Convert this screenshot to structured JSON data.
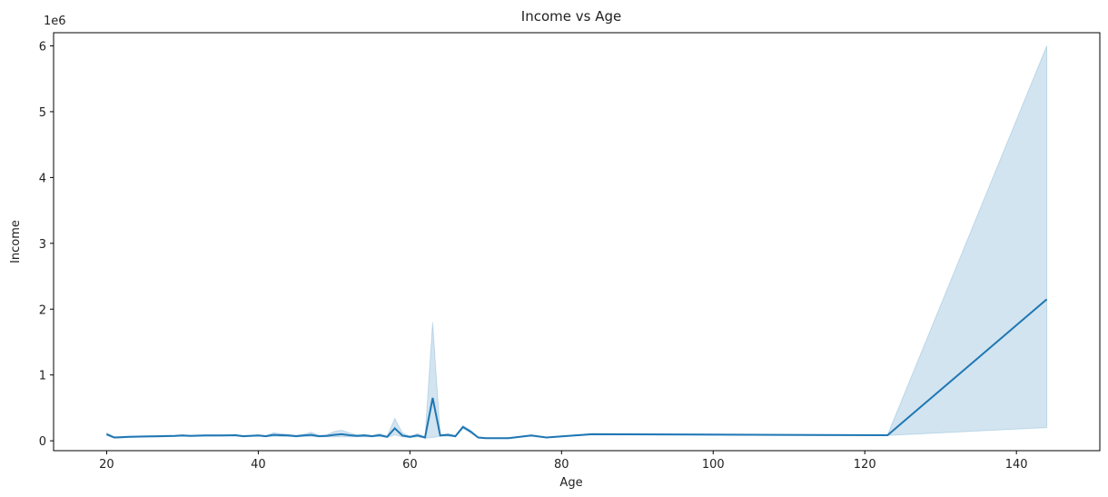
{
  "chart_data": {
    "type": "line",
    "title": "Income vs Age",
    "xlabel": "Age",
    "ylabel": "Income",
    "y_offset_label": "1e6",
    "xlim": [
      13,
      151
    ],
    "ylim": [
      -0.15,
      6.2
    ],
    "y_unit_multiplier": 1000000,
    "xticks": [
      20,
      40,
      60,
      80,
      100,
      120,
      140
    ],
    "yticks": [
      0,
      1,
      2,
      3,
      4,
      5,
      6
    ],
    "grid": false,
    "colors": {
      "line": "#1f77b4",
      "band": "#1f77b4",
      "band_opacity": 0.2
    },
    "series": [
      {
        "name": "",
        "x": [
          20,
          21,
          23,
          25,
          27,
          29,
          30,
          31,
          33,
          35,
          37,
          38,
          40,
          41,
          42,
          43,
          44,
          45,
          46,
          47,
          48,
          49,
          50,
          51,
          52,
          53,
          54,
          55,
          56,
          57,
          58,
          59,
          60,
          61,
          62,
          63,
          64,
          65,
          66,
          67,
          68,
          69,
          70,
          71,
          73,
          76,
          78,
          84,
          123,
          144
        ],
        "y": [
          0.1,
          0.05,
          0.06,
          0.065,
          0.07,
          0.075,
          0.08,
          0.075,
          0.08,
          0.08,
          0.085,
          0.07,
          0.08,
          0.07,
          0.09,
          0.085,
          0.08,
          0.07,
          0.08,
          0.09,
          0.07,
          0.075,
          0.09,
          0.1,
          0.085,
          0.075,
          0.08,
          0.07,
          0.085,
          0.06,
          0.19,
          0.08,
          0.06,
          0.08,
          0.05,
          0.65,
          0.08,
          0.09,
          0.07,
          0.21,
          0.14,
          0.05,
          0.04,
          0.04,
          0.04,
          0.08,
          0.05,
          0.1,
          0.085,
          2.15
        ],
        "ci_low": [
          0.08,
          0.04,
          0.05,
          0.055,
          0.06,
          0.065,
          0.07,
          0.065,
          0.07,
          0.07,
          0.075,
          0.06,
          0.07,
          0.06,
          0.07,
          0.065,
          0.065,
          0.06,
          0.065,
          0.065,
          0.06,
          0.06,
          0.06,
          0.06,
          0.06,
          0.06,
          0.06,
          0.06,
          0.065,
          0.05,
          0.09,
          0.06,
          0.05,
          0.06,
          0.04,
          0.05,
          0.07,
          0.07,
          0.06,
          0.19,
          0.12,
          0.045,
          0.035,
          0.035,
          0.035,
          0.07,
          0.045,
          0.09,
          0.08,
          0.2
        ],
        "ci_high": [
          0.12,
          0.06,
          0.07,
          0.075,
          0.08,
          0.085,
          0.09,
          0.085,
          0.09,
          0.09,
          0.095,
          0.08,
          0.09,
          0.08,
          0.12,
          0.11,
          0.095,
          0.085,
          0.1,
          0.13,
          0.08,
          0.09,
          0.14,
          0.16,
          0.12,
          0.09,
          0.1,
          0.08,
          0.11,
          0.07,
          0.34,
          0.12,
          0.07,
          0.11,
          0.06,
          1.8,
          0.09,
          0.11,
          0.08,
          0.23,
          0.16,
          0.055,
          0.045,
          0.045,
          0.045,
          0.09,
          0.055,
          0.11,
          0.09,
          6.0
        ]
      }
    ]
  }
}
